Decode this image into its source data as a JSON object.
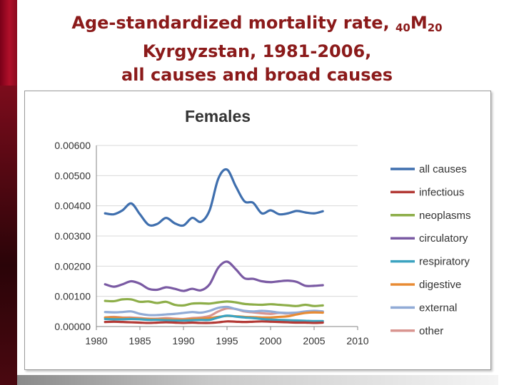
{
  "slide": {
    "title_line1_main": "Age-standardized mortality rate, ",
    "title_line1_pre": "40",
    "title_line1_m": "M",
    "title_line1_post": "20",
    "title_line2": "Kyrgyzstan, 1981-2006,",
    "title_line3": "all causes and broad causes",
    "accent_color": "#8b1a1a"
  },
  "chart_data": {
    "type": "line",
    "title": "Females",
    "xlabel": "",
    "ylabel": "",
    "xlim": [
      1980,
      2010
    ],
    "ylim": [
      0,
      0.006
    ],
    "x_ticks": [
      1980,
      1985,
      1990,
      1995,
      2000,
      2005,
      2010
    ],
    "x_tick_labels": [
      "1980",
      "1985",
      "1990",
      "1995",
      "2000",
      "2005",
      "2010"
    ],
    "y_ticks": [
      0,
      0.001,
      0.002,
      0.003,
      0.004,
      0.005,
      0.006
    ],
    "y_tick_labels": [
      "0.00000",
      "0.00100",
      "0.00200",
      "0.00300",
      "0.00400",
      "0.00500",
      "0.00600"
    ],
    "grid": "horizontal",
    "legend_position": "right",
    "x": [
      1981,
      1982,
      1983,
      1984,
      1985,
      1986,
      1987,
      1988,
      1989,
      1990,
      1991,
      1992,
      1993,
      1994,
      1995,
      1996,
      1997,
      1998,
      1999,
      2000,
      2001,
      2002,
      2003,
      2004,
      2005,
      2006
    ],
    "series": [
      {
        "name": "all causes",
        "color": "#3f6fae",
        "values": [
          0.00375,
          0.00372,
          0.00385,
          0.00408,
          0.00372,
          0.00337,
          0.0034,
          0.0036,
          0.00342,
          0.00335,
          0.0036,
          0.00347,
          0.00385,
          0.0049,
          0.0052,
          0.00465,
          0.00415,
          0.0041,
          0.00375,
          0.00385,
          0.00372,
          0.00375,
          0.00383,
          0.00378,
          0.00375,
          0.00382
        ]
      },
      {
        "name": "infectious",
        "color": "#b33a36",
        "values": [
          0.00015,
          0.00016,
          0.00015,
          0.00014,
          0.00013,
          0.00012,
          0.00013,
          0.00014,
          0.00013,
          0.00012,
          0.00013,
          0.00012,
          0.00012,
          0.00014,
          0.00017,
          0.00016,
          0.00015,
          0.00016,
          0.00017,
          0.00016,
          0.00015,
          0.00014,
          0.00013,
          0.00013,
          0.00012,
          0.00013
        ]
      },
      {
        "name": "neoplasms",
        "color": "#8dae49",
        "values": [
          0.00085,
          0.00084,
          0.0009,
          0.0009,
          0.00082,
          0.00083,
          0.00078,
          0.00082,
          0.00072,
          0.0007,
          0.00076,
          0.00077,
          0.00076,
          0.0008,
          0.00083,
          0.0008,
          0.00075,
          0.00073,
          0.00072,
          0.00074,
          0.00072,
          0.0007,
          0.00068,
          0.00072,
          0.00068,
          0.0007
        ]
      },
      {
        "name": "circulatory",
        "color": "#7a5aa3",
        "values": [
          0.0014,
          0.00132,
          0.0014,
          0.0015,
          0.00142,
          0.00125,
          0.00122,
          0.0013,
          0.00125,
          0.00118,
          0.00125,
          0.0012,
          0.0014,
          0.00195,
          0.00215,
          0.0019,
          0.0016,
          0.00158,
          0.0015,
          0.00147,
          0.0015,
          0.00152,
          0.00148,
          0.00135,
          0.00135,
          0.00137
        ]
      },
      {
        "name": "respiratory",
        "color": "#3ba3c0",
        "values": [
          0.00025,
          0.00024,
          0.00024,
          0.00025,
          0.00024,
          0.00022,
          0.00022,
          0.00021,
          0.0002,
          0.0002,
          0.00021,
          0.00022,
          0.00022,
          0.0003,
          0.00036,
          0.00033,
          0.0003,
          0.00028,
          0.00025,
          0.00023,
          0.00022,
          0.00021,
          0.0002,
          0.00019,
          0.00018,
          0.00018
        ]
      },
      {
        "name": "digestive",
        "color": "#e88b34",
        "values": [
          0.0003,
          0.0003,
          0.00028,
          0.00027,
          0.00026,
          0.00025,
          0.00024,
          0.00024,
          0.00023,
          0.00023,
          0.00025,
          0.00026,
          0.00028,
          0.00032,
          0.00035,
          0.00034,
          0.00032,
          0.00031,
          0.0003,
          0.0003,
          0.00032,
          0.00034,
          0.0004,
          0.00045,
          0.00047,
          0.00046
        ]
      },
      {
        "name": "external",
        "color": "#91abd6",
        "values": [
          0.00048,
          0.00047,
          0.00048,
          0.0005,
          0.00042,
          0.00038,
          0.00038,
          0.0004,
          0.00042,
          0.00045,
          0.00048,
          0.00046,
          0.00052,
          0.00062,
          0.00065,
          0.00058,
          0.00052,
          0.0005,
          0.00052,
          0.0005,
          0.00046,
          0.00045,
          0.00046,
          0.0005,
          0.00052,
          0.0005
        ]
      },
      {
        "name": "other",
        "color": "#d99590",
        "values": [
          0.0003,
          0.00032,
          0.0003,
          0.0003,
          0.00028,
          0.00026,
          0.00026,
          0.00028,
          0.00026,
          0.00025,
          0.00028,
          0.0003,
          0.00035,
          0.0005,
          0.0006,
          0.00058,
          0.0005,
          0.00047,
          0.00044,
          0.00042,
          0.00045,
          0.00043,
          0.00045,
          0.00048,
          0.00047,
          0.00048
        ]
      }
    ]
  }
}
